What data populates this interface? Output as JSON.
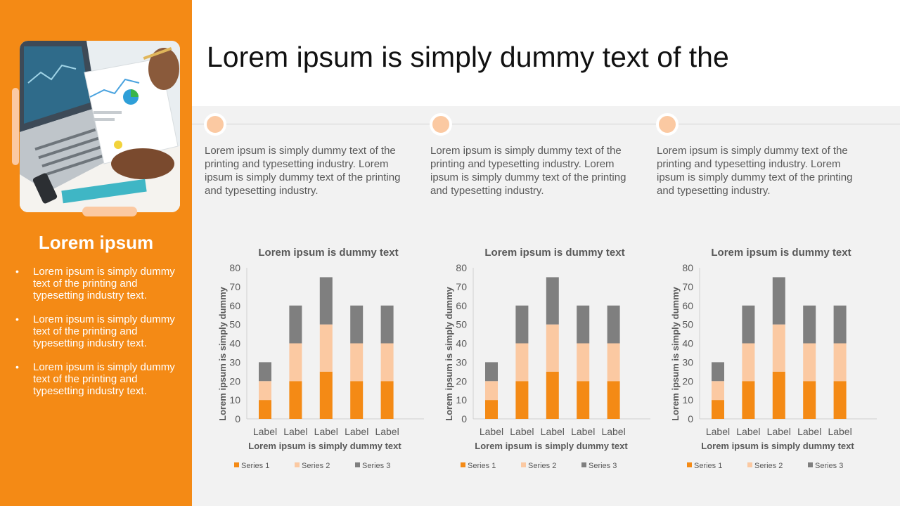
{
  "page": {
    "title": "Lorem ipsum is simply dummy text of the"
  },
  "sidebar": {
    "title": "Lorem ipsum",
    "bullets": [
      "Lorem ipsum is simply dummy text of the printing and typesetting industry text.",
      "Lorem ipsum is simply dummy text of the printing and typesetting industry text.",
      "Lorem ipsum is simply dummy text of the printing and typesetting industry text."
    ]
  },
  "columns": [
    {
      "text": "Lorem ipsum is simply dummy text of the printing and typesetting industry. Lorem ipsum is simply dummy text of the printing and typesetting industry."
    },
    {
      "text": "Lorem ipsum is simply dummy text of the printing and typesetting industry. Lorem ipsum is simply dummy text of the printing and typesetting industry."
    },
    {
      "text": "Lorem ipsum is simply dummy text of the printing and typesetting industry. Lorem ipsum is simply dummy text of the printing and typesetting industry."
    }
  ],
  "colors": {
    "accent": "#F48A15",
    "series1": "#F48A15",
    "series2": "#FBC9A2",
    "series3": "#7F7F7F",
    "background": "#F2F2F2"
  },
  "chart_data": [
    {
      "type": "bar",
      "stacked": true,
      "title": "Lorem ipsum is dummy text",
      "xlabel": "Lorem ipsum is simply dummy text",
      "ylabel": "Lorem ipsum is simply dummy",
      "categories": [
        "Label",
        "Label",
        "Label",
        "Label",
        "Label"
      ],
      "series": [
        {
          "name": "Series 1",
          "values": [
            10,
            20,
            25,
            20,
            20
          ]
        },
        {
          "name": "Series 2",
          "values": [
            10,
            20,
            25,
            20,
            20
          ]
        },
        {
          "name": "Series 3",
          "values": [
            10,
            20,
            25,
            20,
            20
          ]
        }
      ],
      "ylim": [
        0,
        80
      ],
      "yticks": [
        0,
        10,
        20,
        30,
        40,
        50,
        60,
        70,
        80
      ],
      "grid": false,
      "legend": "bottom"
    },
    {
      "type": "bar",
      "stacked": true,
      "title": "Lorem ipsum is dummy text",
      "xlabel": "Lorem ipsum is simply dummy text",
      "ylabel": "Lorem ipsum is simply dummy",
      "categories": [
        "Label",
        "Label",
        "Label",
        "Label",
        "Label"
      ],
      "series": [
        {
          "name": "Series 1",
          "values": [
            10,
            20,
            25,
            20,
            20
          ]
        },
        {
          "name": "Series 2",
          "values": [
            10,
            20,
            25,
            20,
            20
          ]
        },
        {
          "name": "Series 3",
          "values": [
            10,
            20,
            25,
            20,
            20
          ]
        }
      ],
      "ylim": [
        0,
        80
      ],
      "yticks": [
        0,
        10,
        20,
        30,
        40,
        50,
        60,
        70,
        80
      ],
      "grid": false,
      "legend": "bottom"
    },
    {
      "type": "bar",
      "stacked": true,
      "title": "Lorem ipsum is dummy text",
      "xlabel": "Lorem ipsum is simply dummy text",
      "ylabel": "Lorem ipsum is simply dummy",
      "categories": [
        "Label",
        "Label",
        "Label",
        "Label",
        "Label"
      ],
      "series": [
        {
          "name": "Series 1",
          "values": [
            10,
            20,
            25,
            20,
            20
          ]
        },
        {
          "name": "Series 2",
          "values": [
            10,
            20,
            25,
            20,
            20
          ]
        },
        {
          "name": "Series 3",
          "values": [
            10,
            20,
            25,
            20,
            20
          ]
        }
      ],
      "ylim": [
        0,
        80
      ],
      "yticks": [
        0,
        10,
        20,
        30,
        40,
        50,
        60,
        70,
        80
      ],
      "grid": false,
      "legend": "bottom"
    }
  ]
}
